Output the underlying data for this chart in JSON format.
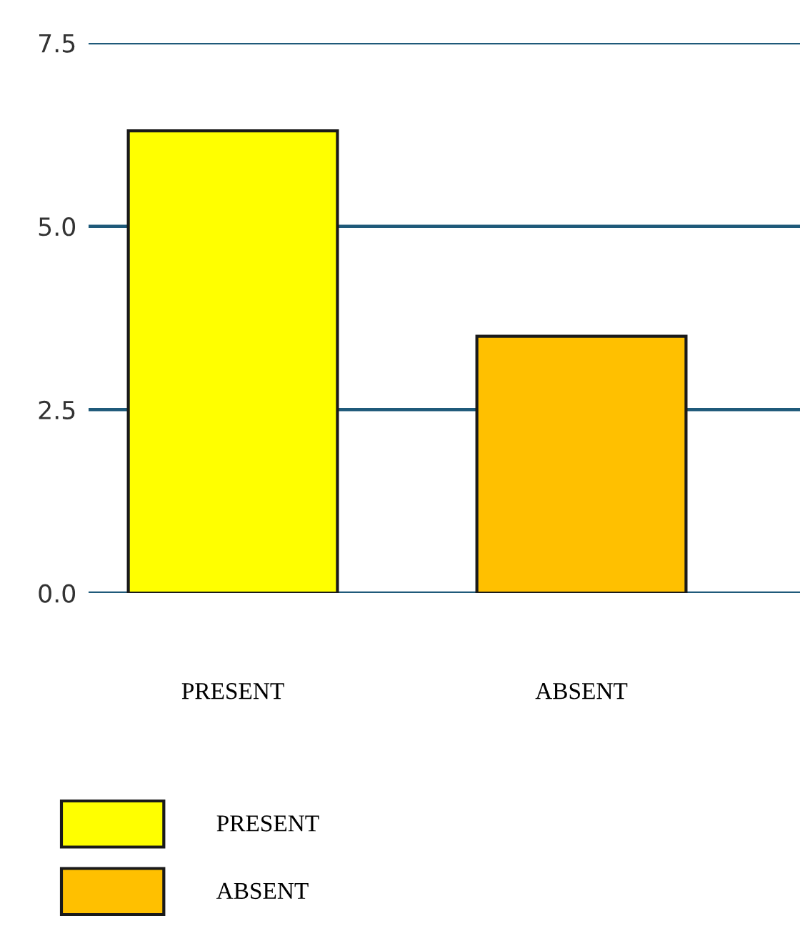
{
  "chart_data": {
    "type": "bar",
    "categories": [
      "PRESENT",
      "ABSENT"
    ],
    "series": [
      {
        "name": "PRESENT",
        "color": "#ffff00",
        "values": [
          6.3,
          null
        ]
      },
      {
        "name": "ABSENT",
        "color": "#ffc000",
        "values": [
          null,
          3.5
        ]
      }
    ],
    "ylim": [
      0,
      7.5
    ],
    "yticks": [
      {
        "value": 0,
        "label": "0.0"
      },
      {
        "value": 2.5,
        "label": "2.5"
      },
      {
        "value": 5,
        "label": "5.0"
      },
      {
        "value": 7.5,
        "label": "7.5"
      }
    ],
    "grid": "y",
    "legend": "bottom left"
  }
}
